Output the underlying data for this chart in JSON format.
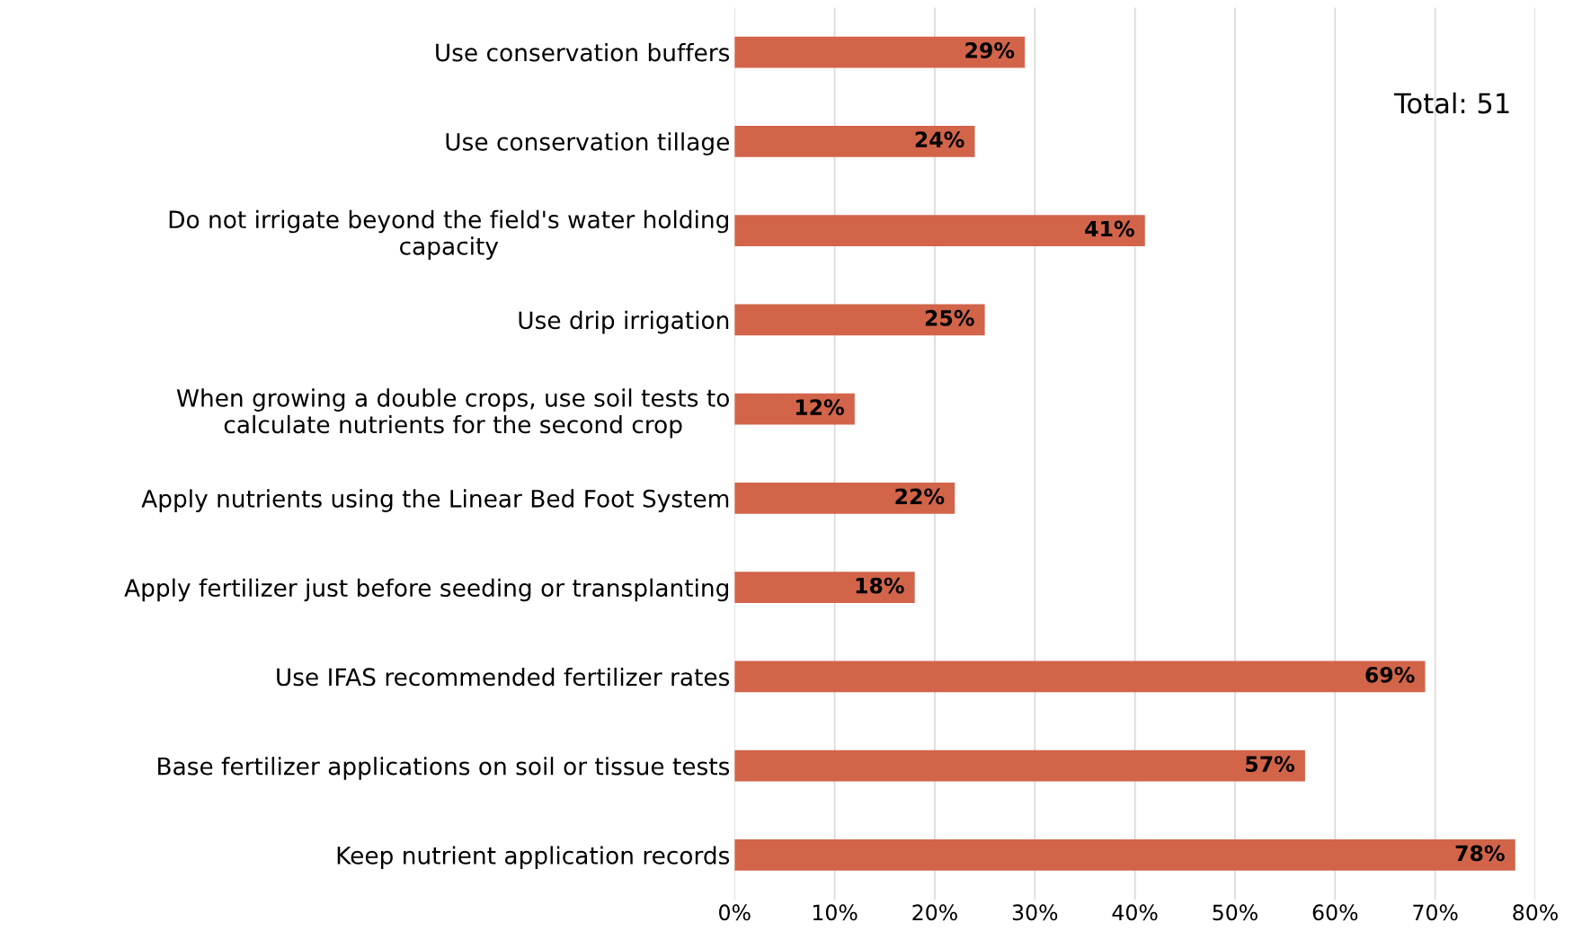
{
  "chart_data": {
    "type": "bar",
    "orientation": "horizontal",
    "categories": [
      "Use conservation buffers",
      "Use conservation tillage",
      "Do not irrigate beyond the field's water holding\ncapacity",
      "Use drip irrigation",
      "When growing a double crops, use soil tests to\ncalculate nutrients for the second crop",
      "Apply nutrients using the Linear Bed Foot System",
      "Apply fertilizer just before seeding or transplanting",
      "Use IFAS recommended fertilizer rates",
      "Base fertilizer applications on soil or tissue tests",
      "Keep nutrient application records"
    ],
    "values": [
      29,
      24,
      41,
      25,
      12,
      22,
      18,
      69,
      57,
      78
    ],
    "value_labels": [
      "29%",
      "24%",
      "41%",
      "25%",
      "12%",
      "22%",
      "18%",
      "69%",
      "57%",
      "78%"
    ],
    "color": "#d2644a",
    "xlim": [
      0,
      80
    ],
    "xticks": [
      {
        "value": 0,
        "label": "0%"
      },
      {
        "value": 10,
        "label": "10%"
      },
      {
        "value": 20,
        "label": "20%"
      },
      {
        "value": 30,
        "label": "30%"
      },
      {
        "value": 40,
        "label": "40%"
      },
      {
        "value": 50,
        "label": "50%"
      },
      {
        "value": 60,
        "label": "60%"
      },
      {
        "value": 70,
        "label": "70%"
      },
      {
        "value": 80,
        "label": "80%"
      }
    ],
    "grid": "x",
    "legend": false,
    "annotations": [
      "Total: 51"
    ]
  }
}
